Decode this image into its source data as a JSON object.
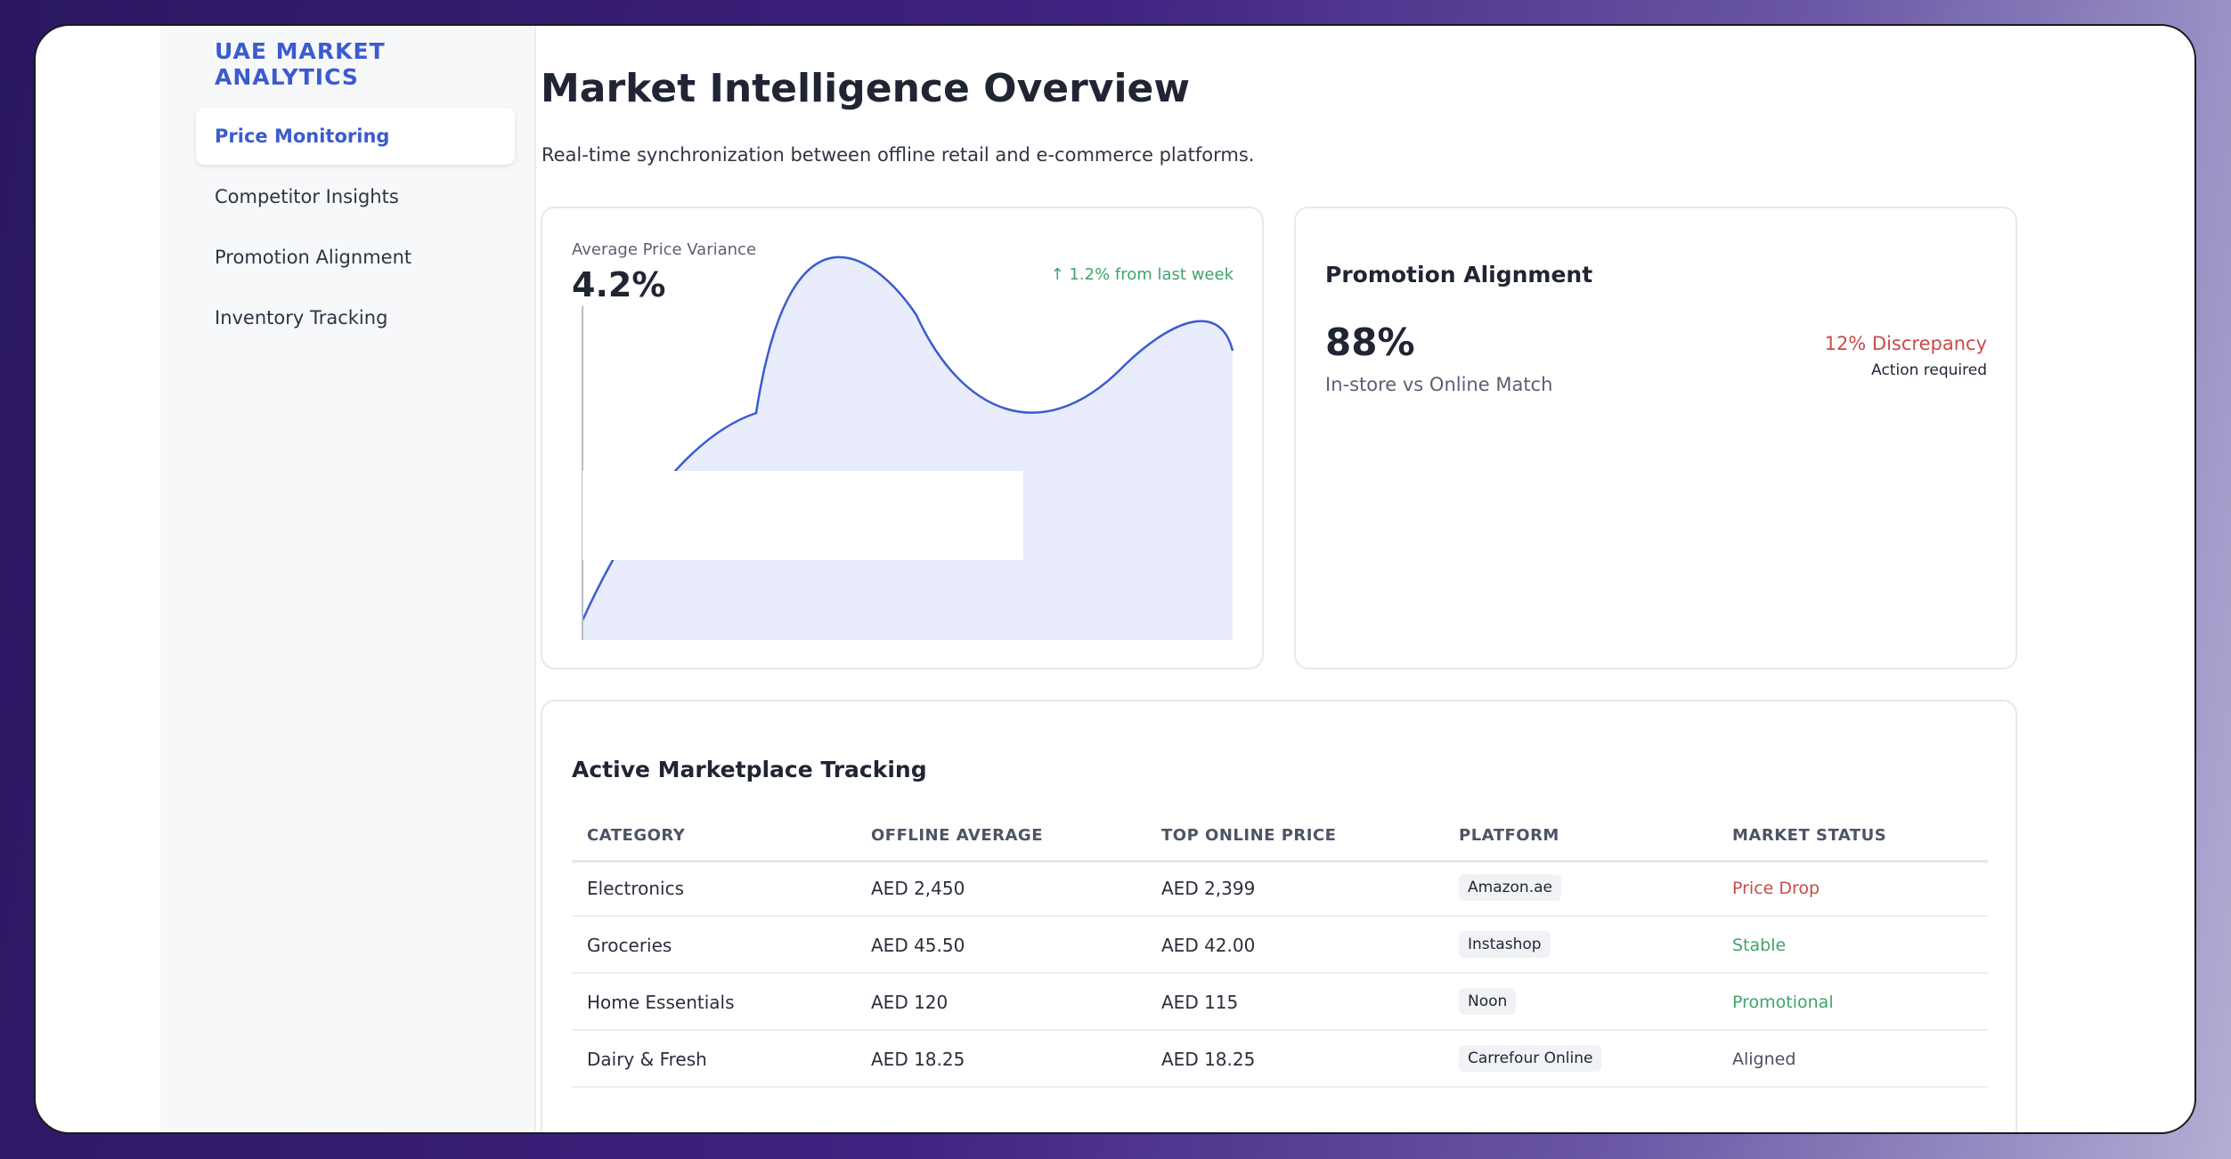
{
  "sidebar": {
    "brand": "UAE MARKET ANALYTICS",
    "items": [
      {
        "label": "Price Monitoring"
      },
      {
        "label": "Competitor Insights"
      },
      {
        "label": "Promotion Alignment"
      },
      {
        "label": "Inventory Tracking"
      }
    ]
  },
  "header": {
    "title": "Market Intelligence Overview",
    "subtitle": "Real-time synchronization between offline retail and e-commerce platforms."
  },
  "variance_card": {
    "label": "Average Price Variance",
    "value": "4.2%",
    "change": "↑ 1.2% from last week"
  },
  "promo_card": {
    "title": "Promotion Alignment",
    "value": "88%",
    "subtitle": "In-store vs Online Match",
    "discrepancy": "12% Discrepancy",
    "action": "Action required"
  },
  "table": {
    "title": "Active Marketplace Tracking",
    "headers": [
      "CATEGORY",
      "OFFLINE AVERAGE",
      "TOP ONLINE PRICE",
      "PLATFORM",
      "MARKET STATUS"
    ],
    "rows": [
      {
        "category": "Electronics",
        "offline": "AED 2,450",
        "online": "AED 2,399",
        "platform": "Amazon.ae",
        "status": "Price Drop"
      },
      {
        "category": "Groceries",
        "offline": "AED 45.50",
        "online": "AED 42.00",
        "platform": "Instashop",
        "status": "Stable"
      },
      {
        "category": "Home Essentials",
        "offline": "AED 120",
        "online": "AED 115",
        "platform": "Noon",
        "status": "Promotional"
      },
      {
        "category": "Dairy & Fresh",
        "offline": "AED 18.25",
        "online": "AED 18.25",
        "platform": "Carrefour Online",
        "status": "Aligned"
      }
    ]
  },
  "colors": {
    "accent": "#3b5bcf",
    "positive": "#3fa36b",
    "negative": "#c94a4a",
    "neutral": "#4a5060",
    "chart_fill": "#e8ecfb",
    "chart_line": "#3b5bcf"
  }
}
